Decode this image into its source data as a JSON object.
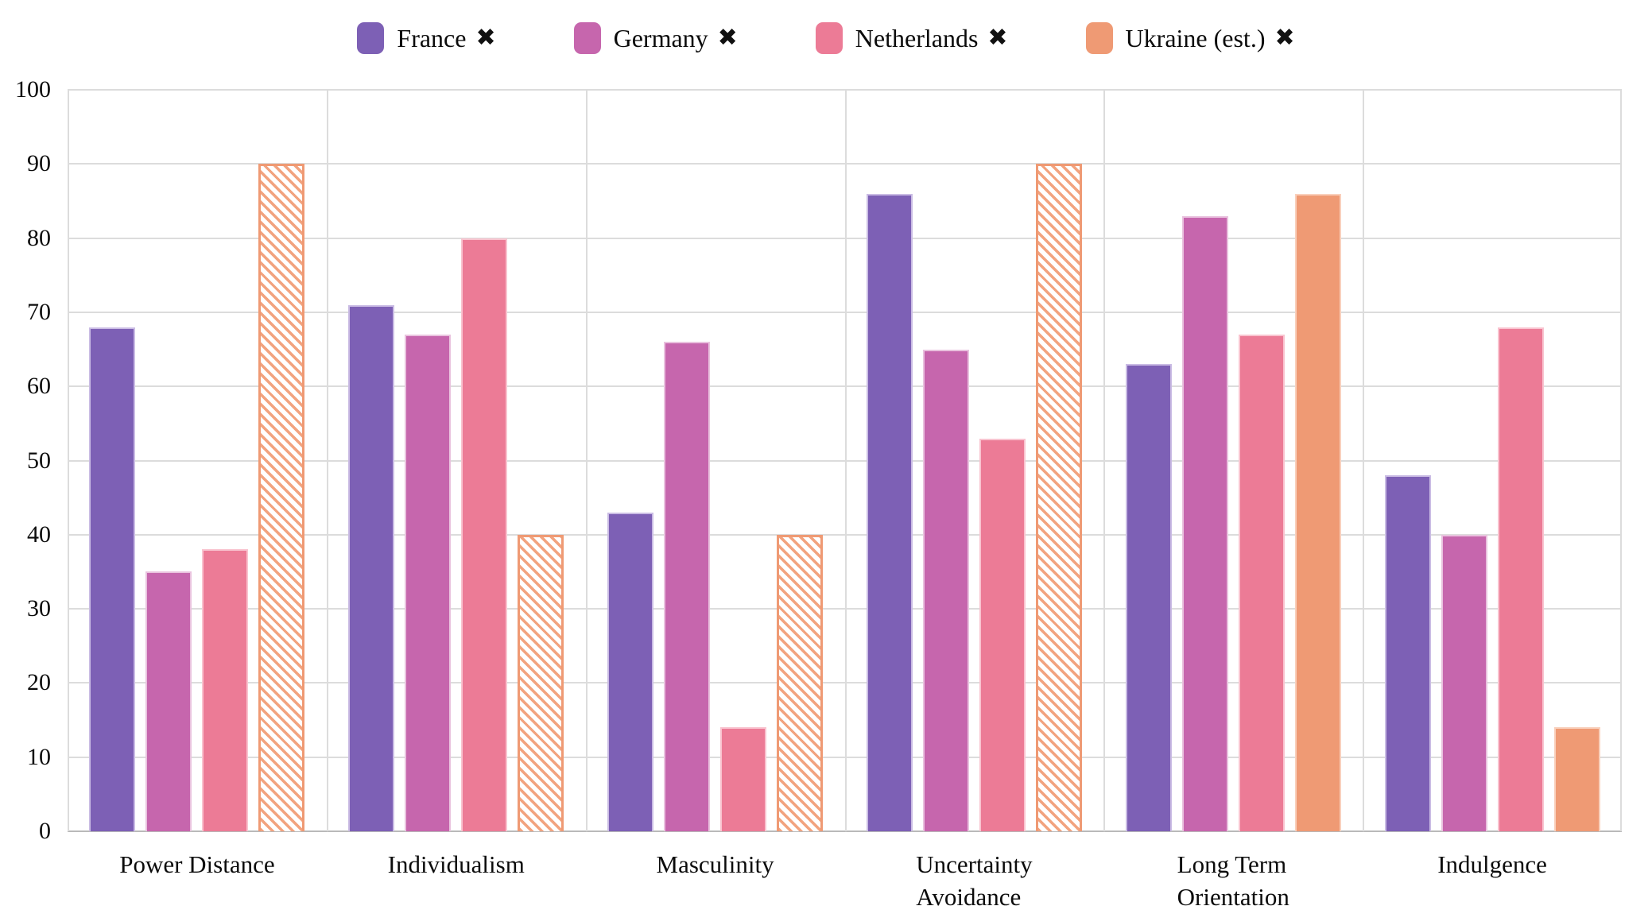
{
  "legend": {
    "items": [
      {
        "label": "France",
        "remove_icon": "✖",
        "color": "#7d60b5",
        "stroke": "#cabce4"
      },
      {
        "label": "Germany",
        "remove_icon": "✖",
        "color": "#c666ad",
        "stroke": "#e9c2de"
      },
      {
        "label": "Netherlands",
        "remove_icon": "✖",
        "color": "#ec7b96",
        "stroke": "#f9c3cf"
      },
      {
        "label": "Ukraine (est.)",
        "remove_icon": "✖",
        "color": "#ef9a74",
        "stroke": "#f9d0bc"
      }
    ]
  },
  "chart_data": {
    "type": "bar",
    "categories": [
      "Power Distance",
      "Individualism",
      "Masculinity",
      "Uncertainty Avoidance",
      "Long Term Orientation",
      "Indulgence"
    ],
    "category_label_lines": [
      [
        "Power Distance"
      ],
      [
        "Individualism"
      ],
      [
        "Masculinity"
      ],
      [
        "Uncertainty",
        "Avoidance"
      ],
      [
        "Long Term",
        "Orientation"
      ],
      [
        "Indulgence"
      ]
    ],
    "series": [
      {
        "name": "France",
        "color": "#7d60b5",
        "stroke": "#cabce4",
        "values": [
          68,
          71,
          43,
          86,
          63,
          48
        ],
        "hatched": [
          false,
          false,
          false,
          false,
          false,
          false
        ]
      },
      {
        "name": "Germany",
        "color": "#c666ad",
        "stroke": "#e9c2de",
        "values": [
          35,
          67,
          66,
          65,
          83,
          40
        ],
        "hatched": [
          false,
          false,
          false,
          false,
          false,
          false
        ]
      },
      {
        "name": "Netherlands",
        "color": "#ec7b96",
        "stroke": "#f9c3cf",
        "values": [
          38,
          80,
          14,
          53,
          67,
          68
        ],
        "hatched": [
          false,
          false,
          false,
          false,
          false,
          false
        ]
      },
      {
        "name": "Ukraine (est.)",
        "color": "#ef9a74",
        "stroke": "#f9d0bc",
        "values": [
          90,
          40,
          40,
          90,
          86,
          14
        ],
        "hatched": [
          true,
          true,
          true,
          true,
          false,
          false
        ]
      }
    ],
    "ylim": [
      0,
      100
    ],
    "ytick_step": 10,
    "yticks": [
      "0",
      "10",
      "20",
      "30",
      "40",
      "50",
      "60",
      "70",
      "80",
      "90",
      "100"
    ],
    "grid": true,
    "legend_position": "top",
    "hatch_color": "#f2a37f",
    "gridline_color": "#dcdcdc",
    "axis_color": "#b9b9b9"
  }
}
